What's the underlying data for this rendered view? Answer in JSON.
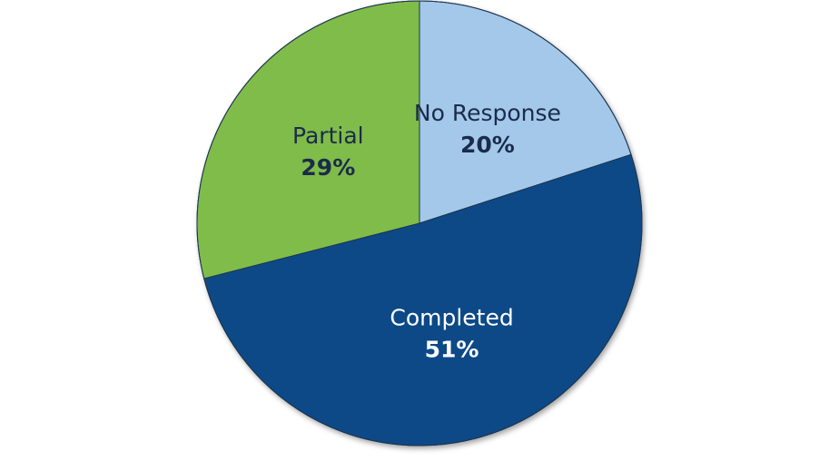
{
  "chart_data": {
    "type": "pie",
    "categories": [
      "No Response",
      "Completed",
      "Partial"
    ],
    "values": [
      20,
      51,
      29
    ],
    "value_labels": [
      "20%",
      "51%",
      "29%"
    ],
    "colors": [
      "#a3c8ea",
      "#0d4a87",
      "#80bc4a"
    ]
  }
}
